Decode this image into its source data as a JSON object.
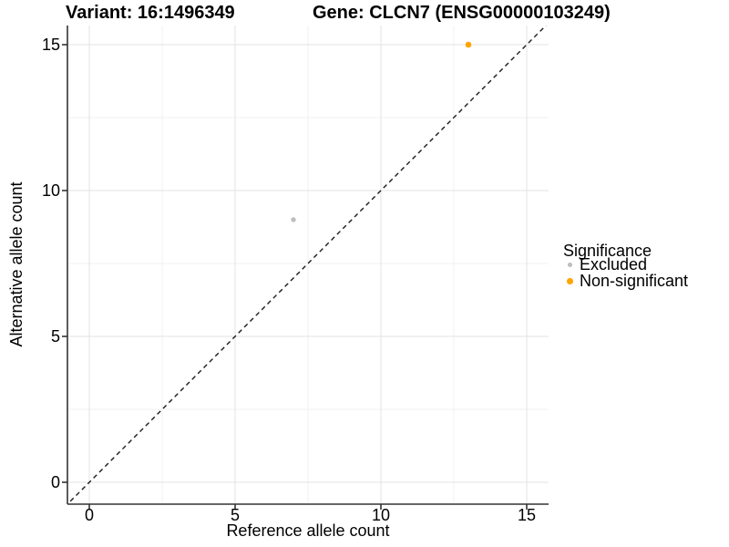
{
  "titles": {
    "variant": "Variant: 16:1496349",
    "gene": "Gene: CLCN7 (ENSG00000103249)"
  },
  "chart_data": {
    "type": "scatter",
    "title_left": "Variant: 16:1496349",
    "title_right": "Gene: CLCN7 (ENSG00000103249)",
    "xlabel": "Reference allele count",
    "ylabel": "Alternative allele count",
    "xlim": [
      -0.75,
      15.75
    ],
    "ylim": [
      -0.75,
      15.75
    ],
    "x_ticks": [
      0,
      5,
      10,
      15
    ],
    "y_ticks": [
      0,
      5,
      10,
      15
    ],
    "x_minor_ticks": [
      2.5,
      7.5,
      12.5
    ],
    "y_minor_ticks": [
      2.5,
      7.5,
      12.5
    ],
    "grid": {
      "major": true,
      "minor": true,
      "major_color": "#E3E3E3",
      "minor_color": "#F0F0F0"
    },
    "reference_line": {
      "type": "identity",
      "slope": 1,
      "intercept": 0,
      "style": "dashed",
      "color": "#1a1a1a"
    },
    "series": [
      {
        "name": "Excluded",
        "color": "#BEBEBE",
        "marker_radius": 2.7,
        "legend_radius": 2.4,
        "points": [
          {
            "x": 7,
            "y": 9
          }
        ]
      },
      {
        "name": "Non-significant",
        "color": "#FFA500",
        "marker_radius": 3.3,
        "legend_radius": 3.3,
        "points": [
          {
            "x": 13,
            "y": 15
          }
        ]
      }
    ],
    "legend": {
      "title": "Significance",
      "position": "right"
    }
  }
}
